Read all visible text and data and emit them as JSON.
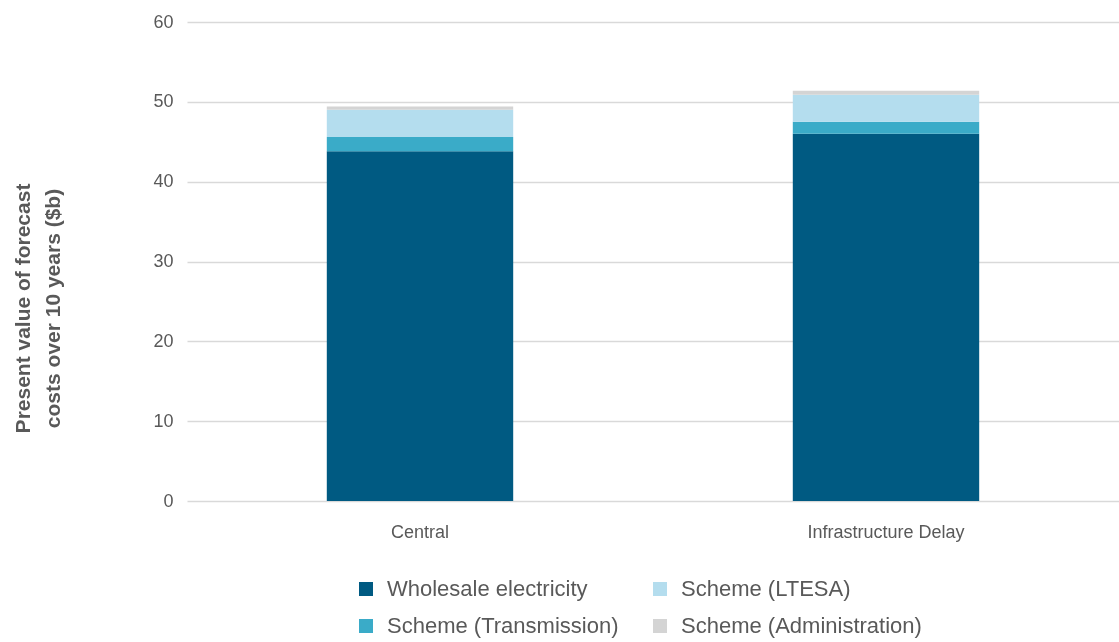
{
  "chart_data": {
    "type": "bar",
    "categories": [
      "Central",
      "Infrastructure Delay"
    ],
    "ylabel": "Present value of forecast costs over 10 years ($b)",
    "stacked": true,
    "series": [
      {
        "name": "Wholesale electricity",
        "color": "#005a82",
        "values": [
          43.8,
          46.0
        ]
      },
      {
        "name": "Scheme (Transmission)",
        "color": "#3aabc8",
        "values": [
          1.8,
          1.5
        ]
      },
      {
        "name": "Scheme (LTESA)",
        "color": "#b4ddee",
        "values": [
          3.4,
          3.4
        ]
      },
      {
        "name": "Scheme (Administration)",
        "color": "#d4d4d4",
        "values": [
          0.4,
          0.5
        ]
      }
    ],
    "ylim": [
      0,
      60
    ],
    "yticks": [
      0,
      10,
      20,
      30,
      40,
      50,
      60
    ],
    "grid": "y",
    "legend": "bottom"
  }
}
